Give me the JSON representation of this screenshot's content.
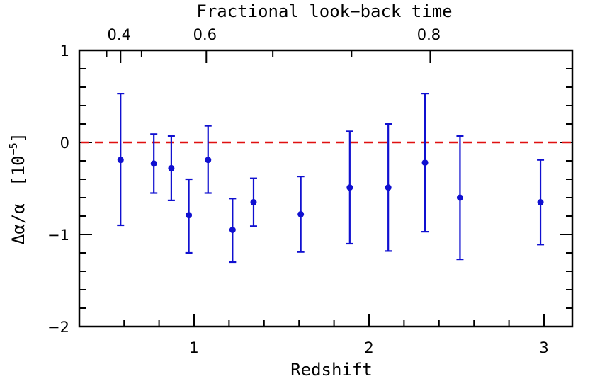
{
  "chart_data": {
    "type": "scatter",
    "title": "",
    "xlabel": "Redshift",
    "ylabel_main": "Δα/α",
    "ylabel_unit_base": "[10",
    "ylabel_unit_exp": "−5",
    "ylabel_unit_close": "]",
    "top_axis_label": "Fractional look−back time",
    "xlim": [
      0.4,
      3.2
    ],
    "ylim": [
      -2,
      1
    ],
    "x_ticks": [
      {
        "value": 1,
        "label": "1"
      },
      {
        "value": 2,
        "label": "2"
      },
      {
        "value": 3,
        "label": "3"
      }
    ],
    "y_ticks": [
      {
        "value": -2,
        "label": "−2"
      },
      {
        "value": -1,
        "label": "−1"
      },
      {
        "value": 0,
        "label": "0"
      },
      {
        "value": 1,
        "label": "1"
      }
    ],
    "top_ticks": [
      {
        "z": 0.58,
        "label": "0.4"
      },
      {
        "z": 1.07,
        "label": "0.6"
      },
      {
        "z": 2.35,
        "label": "0.8"
      }
    ],
    "reference_line": {
      "y": 0,
      "style": "dashed",
      "color": "#e01010"
    },
    "series": [
      {
        "color": "#1010d0",
        "points": [
          {
            "x": 0.58,
            "y": -0.19,
            "err_low": -0.9,
            "err_high": 0.53
          },
          {
            "x": 0.77,
            "y": -0.23,
            "err_low": -0.55,
            "err_high": 0.09
          },
          {
            "x": 0.87,
            "y": -0.28,
            "err_low": -0.63,
            "err_high": 0.07
          },
          {
            "x": 0.97,
            "y": -0.79,
            "err_low": -1.2,
            "err_high": -0.4
          },
          {
            "x": 1.08,
            "y": -0.19,
            "err_low": -0.55,
            "err_high": 0.18
          },
          {
            "x": 1.22,
            "y": -0.95,
            "err_low": -1.3,
            "err_high": -0.61
          },
          {
            "x": 1.34,
            "y": -0.65,
            "err_low": -0.91,
            "err_high": -0.39
          },
          {
            "x": 1.61,
            "y": -0.78,
            "err_low": -1.19,
            "err_high": -0.37
          },
          {
            "x": 1.89,
            "y": -0.49,
            "err_low": -1.1,
            "err_high": 0.12
          },
          {
            "x": 2.11,
            "y": -0.49,
            "err_low": -1.18,
            "err_high": 0.2
          },
          {
            "x": 2.32,
            "y": -0.22,
            "err_low": -0.97,
            "err_high": 0.53
          },
          {
            "x": 2.52,
            "y": -0.6,
            "err_low": -1.27,
            "err_high": 0.07
          },
          {
            "x": 2.98,
            "y": -0.65,
            "err_low": -1.11,
            "err_high": -0.19
          }
        ]
      }
    ],
    "grid": false
  }
}
